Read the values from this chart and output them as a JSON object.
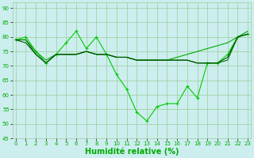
{
  "lines": [
    {
      "x": [
        0,
        1,
        2,
        3,
        4,
        5,
        6,
        7,
        8,
        9,
        10,
        11,
        12,
        13,
        14,
        15,
        16,
        17,
        18,
        19,
        20,
        21,
        22,
        23
      ],
      "y": [
        79,
        80,
        75,
        71,
        74,
        78,
        82,
        76,
        80,
        74,
        67,
        62,
        54,
        51,
        56,
        57,
        57,
        63,
        59,
        71,
        71,
        74,
        80,
        81
      ],
      "color": "#00cc00",
      "marker": "+",
      "linewidth": 0.8,
      "markersize": 3.5
    },
    {
      "x": [
        0,
        1,
        2,
        3,
        4,
        5,
        6,
        7,
        8,
        9,
        10,
        11,
        12,
        13,
        14,
        15,
        16,
        17,
        18,
        19,
        20,
        21,
        22,
        23
      ],
      "y": [
        79,
        79,
        75,
        72,
        74,
        74,
        74,
        75,
        74,
        74,
        73,
        73,
        72,
        72,
        72,
        72,
        73,
        74,
        75,
        76,
        77,
        78,
        80,
        82
      ],
      "color": "#00aa00",
      "marker": null,
      "linewidth": 0.8,
      "markersize": 0
    },
    {
      "x": [
        0,
        1,
        2,
        3,
        4,
        5,
        6,
        7,
        8,
        9,
        10,
        11,
        12,
        13,
        14,
        15,
        16,
        17,
        18,
        19,
        20,
        21,
        22,
        23
      ],
      "y": [
        79,
        79,
        74,
        71,
        74,
        74,
        74,
        75,
        74,
        74,
        73,
        73,
        72,
        72,
        72,
        72,
        72,
        72,
        71,
        71,
        71,
        72,
        80,
        81
      ],
      "color": "#007700",
      "marker": null,
      "linewidth": 0.8,
      "markersize": 0
    },
    {
      "x": [
        0,
        1,
        2,
        3,
        4,
        5,
        6,
        7,
        8,
        9,
        10,
        11,
        12,
        13,
        14,
        15,
        16,
        17,
        18,
        19,
        20,
        21,
        22,
        23
      ],
      "y": [
        79,
        78,
        74,
        71,
        74,
        74,
        74,
        75,
        74,
        74,
        73,
        73,
        72,
        72,
        72,
        72,
        72,
        72,
        71,
        71,
        71,
        73,
        80,
        81
      ],
      "color": "#005500",
      "marker": null,
      "linewidth": 0.8,
      "markersize": 0
    }
  ],
  "xlim": [
    -0.3,
    23.3
  ],
  "ylim": [
    45,
    92
  ],
  "yticks": [
    45,
    50,
    55,
    60,
    65,
    70,
    75,
    80,
    85,
    90
  ],
  "xticks": [
    0,
    1,
    2,
    3,
    4,
    5,
    6,
    7,
    8,
    9,
    10,
    11,
    12,
    13,
    14,
    15,
    16,
    17,
    18,
    19,
    20,
    21,
    22,
    23
  ],
  "xlabel": "Humidité relative (%)",
  "xlabel_color": "#00aa00",
  "grid_color": "#99cc99",
  "bg_color": "#cceeee",
  "tick_color": "#00aa00",
  "tick_fontsize": 5.0,
  "xlabel_fontsize": 7.0,
  "xlabel_bold": true
}
